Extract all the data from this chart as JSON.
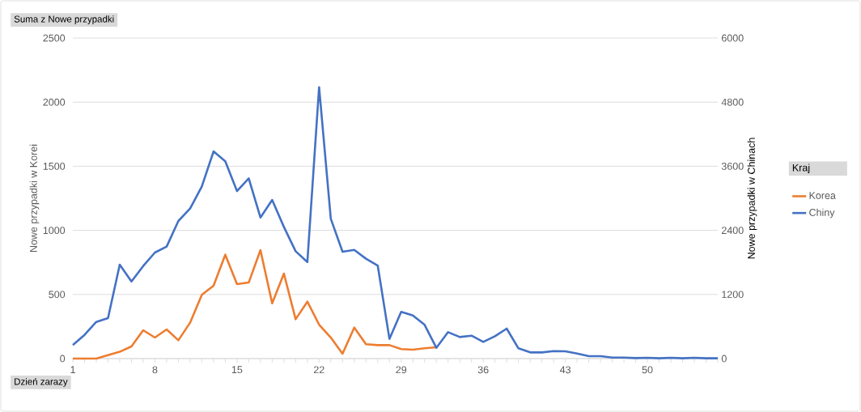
{
  "chart_data": {
    "type": "line",
    "categories": [
      "1",
      null,
      null,
      null,
      null,
      null,
      null,
      "8",
      null,
      null,
      null,
      null,
      null,
      null,
      "15",
      null,
      null,
      null,
      null,
      null,
      null,
      "22",
      null,
      null,
      null,
      null,
      null,
      null,
      "29",
      null,
      null,
      null,
      null,
      null,
      null,
      "36",
      null,
      null,
      null,
      null,
      null,
      null,
      "43",
      null,
      null,
      null,
      null,
      null,
      null,
      "50",
      null,
      null,
      null,
      null,
      null,
      null
    ],
    "series": [
      {
        "name": "Korea",
        "color": "#ed7d31",
        "axis": "y",
        "values": [
          0,
          0,
          0,
          27,
          53,
          95,
          221,
          164,
          227,
          143,
          280,
          497,
          568,
          810,
          581,
          593,
          846,
          431,
          663,
          307,
          444,
          265,
          164,
          38,
          242,
          112,
          105,
          105,
          74,
          69,
          80,
          88,
          null,
          null,
          null,
          null,
          null,
          null,
          null,
          null,
          null,
          null,
          null,
          null,
          null,
          null,
          null,
          null,
          null,
          null,
          null,
          null,
          null,
          null,
          null,
          null
        ]
      },
      {
        "name": "Chiny",
        "color": "#4472c4",
        "axis": "y2",
        "values": [
          253,
          444,
          687,
          758,
          1757,
          1444,
          1732,
          1985,
          2096,
          2576,
          2808,
          3222,
          3878,
          3692,
          3136,
          3373,
          2641,
          2969,
          2464,
          2010,
          1808,
          5080,
          2616,
          2000,
          2035,
          1869,
          1742,
          369,
          874,
          808,
          631,
          202,
          495,
          404,
          429,
          313,
          419,
          561,
          192,
          116,
          116,
          141,
          136,
          96,
          45,
          45,
          20,
          20,
          10,
          15,
          5,
          15,
          5,
          15,
          5,
          5
        ]
      }
    ],
    "ylabel": "Nowe przypadki w Korei",
    "y2label": "Nowe przypadki w Chinach",
    "legend_title": "Kraj",
    "ylim": [
      0,
      2500
    ],
    "yticks": [
      0,
      500,
      1000,
      1500,
      2000,
      2500
    ],
    "y2lim": [
      0,
      6000
    ],
    "y2ticks": [
      0,
      1200,
      2400,
      3600,
      4800,
      6000
    ],
    "grid": "y",
    "legend": "right",
    "annotations": [
      "Suma z Nowe przypadki",
      "Dzień zarazy"
    ]
  }
}
